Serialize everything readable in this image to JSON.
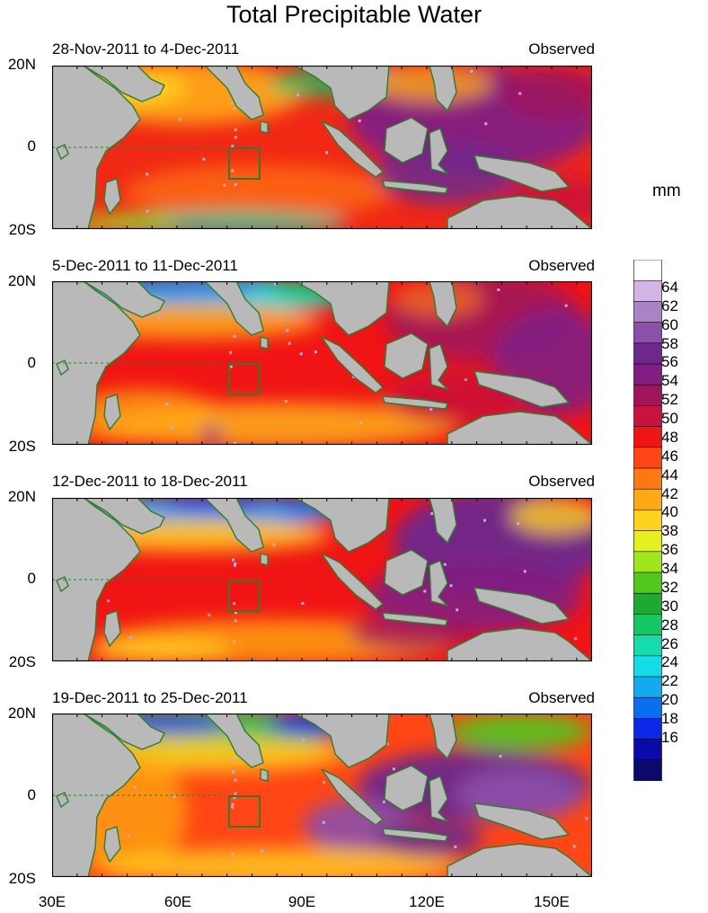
{
  "title": "Total Precipitable Water",
  "units": "mm",
  "panels": [
    {
      "period": "28-Nov-2011 to 4-Dec-2011",
      "status": "Observed"
    },
    {
      "period": "5-Dec-2011 to 11-Dec-2011",
      "status": "Observed"
    },
    {
      "period": "12-Dec-2011 to 18-Dec-2011",
      "status": "Observed"
    },
    {
      "period": "19-Dec-2011 to 25-Dec-2011",
      "status": "Observed"
    }
  ],
  "lat_labels": [
    "20N",
    "0",
    "20S"
  ],
  "lon_labels": [
    "30E",
    "60E",
    "90E",
    "120E",
    "150E"
  ],
  "colorbar_labels": [
    "64",
    "62",
    "60",
    "58",
    "56",
    "54",
    "52",
    "50",
    "48",
    "46",
    "44",
    "42",
    "40",
    "38",
    "36",
    "34",
    "32",
    "30",
    "28",
    "26",
    "24",
    "22",
    "20",
    "18",
    "16"
  ],
  "colors": {
    "land": "#b9b9b9",
    "coast": "#2e7d2e",
    "scale": [
      "#0a0a6e",
      "#0a0aaa",
      "#0a28e6",
      "#0a6ef0",
      "#14aaf0",
      "#14dce6",
      "#14dcaa",
      "#14c864",
      "#1eaa32",
      "#50c81e",
      "#a0e61e",
      "#e6f01e",
      "#ffd21e",
      "#ffaa14",
      "#ff7814",
      "#ff4614",
      "#f01414",
      "#c8143c",
      "#a0145a",
      "#821e82",
      "#6e288c",
      "#8c50aa",
      "#aa82c8",
      "#d2b4e6",
      "#ffffff"
    ]
  }
}
